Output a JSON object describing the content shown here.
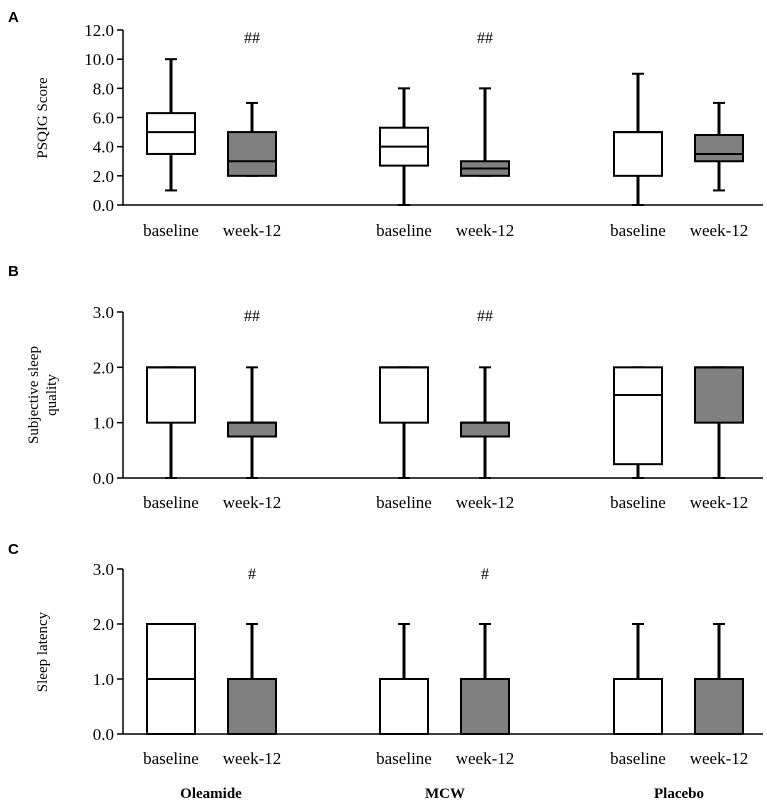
{
  "chart_data": [
    {
      "panel": "A",
      "type": "box",
      "ylabel": "PSQIG Score",
      "ylim": [
        0,
        12
      ],
      "yticks": [
        "0.0",
        "2.0",
        "4.0",
        "6.0",
        "8.0",
        "10.0",
        "12.0"
      ],
      "groups": [
        {
          "sig": "##",
          "boxes": [
            {
              "label": "baseline",
              "fill": "#ffffff",
              "min": 1,
              "q1": 3.5,
              "median": 5,
              "q3": 6.3,
              "max": 10
            },
            {
              "label": "week-12",
              "fill": "#808080",
              "min": 2,
              "q1": 2,
              "median": 3,
              "q3": 5,
              "max": 7
            }
          ]
        },
        {
          "sig": "##",
          "boxes": [
            {
              "label": "baseline",
              "fill": "#ffffff",
              "min": 0,
              "q1": 2.7,
              "median": 4,
              "q3": 5.3,
              "max": 8
            },
            {
              "label": "week-12",
              "fill": "#808080",
              "min": 2,
              "q1": 2,
              "median": 2.5,
              "q3": 3,
              "max": 8
            }
          ]
        },
        {
          "sig": "",
          "boxes": [
            {
              "label": "baseline",
              "fill": "#ffffff",
              "min": 0,
              "q1": 2,
              "median": 5,
              "q3": 5,
              "max": 9
            },
            {
              "label": "week-12",
              "fill": "#808080",
              "min": 1,
              "q1": 3,
              "median": 3.5,
              "q3": 4.8,
              "max": 7
            }
          ]
        }
      ]
    },
    {
      "panel": "B",
      "type": "box",
      "ylabel": [
        "Subjective sleep",
        "quality"
      ],
      "ylim": [
        0,
        3
      ],
      "yticks": [
        "0.0",
        "1.0",
        "2.0",
        "3.0"
      ],
      "groups": [
        {
          "sig": "##",
          "boxes": [
            {
              "label": "baseline",
              "fill": "#ffffff",
              "min": 0,
              "q1": 1,
              "median": 2,
              "q3": 2,
              "max": 2
            },
            {
              "label": "week-12",
              "fill": "#808080",
              "min": 0,
              "q1": 0.75,
              "median": 1,
              "q3": 1,
              "max": 2
            }
          ]
        },
        {
          "sig": "##",
          "boxes": [
            {
              "label": "baseline",
              "fill": "#ffffff",
              "min": 0,
              "q1": 1,
              "median": 2,
              "q3": 2,
              "max": 2
            },
            {
              "label": "week-12",
              "fill": "#808080",
              "min": 0,
              "q1": 0.75,
              "median": 1,
              "q3": 1,
              "max": 2
            }
          ]
        },
        {
          "sig": "",
          "boxes": [
            {
              "label": "baseline",
              "fill": "#ffffff",
              "min": 0,
              "q1": 0.25,
              "median": 1.5,
              "q3": 2,
              "max": 2
            },
            {
              "label": "week-12",
              "fill": "#808080",
              "min": 0,
              "q1": 1,
              "median": 2,
              "q3": 2,
              "max": 2
            }
          ]
        }
      ]
    },
    {
      "panel": "C",
      "type": "box",
      "ylabel": "Sleep latency",
      "ylim": [
        0,
        3
      ],
      "yticks": [
        "0.0",
        "1.0",
        "2.0",
        "3.0"
      ],
      "groups": [
        {
          "sig": "#",
          "boxes": [
            {
              "label": "baseline",
              "fill": "#ffffff",
              "min": 0,
              "q1": 0,
              "median": 1,
              "q3": 2,
              "max": 2
            },
            {
              "label": "week-12",
              "fill": "#808080",
              "min": 0,
              "q1": 0,
              "median": 1,
              "q3": 1,
              "max": 2
            }
          ]
        },
        {
          "sig": "#",
          "boxes": [
            {
              "label": "baseline",
              "fill": "#ffffff",
              "min": 0,
              "q1": 0,
              "median": 1,
              "q3": 1,
              "max": 2
            },
            {
              "label": "week-12",
              "fill": "#808080",
              "min": 0,
              "q1": 0,
              "median": 1,
              "q3": 1,
              "max": 2
            }
          ]
        },
        {
          "sig": "",
          "boxes": [
            {
              "label": "baseline",
              "fill": "#ffffff",
              "min": 0,
              "q1": 0,
              "median": 1,
              "q3": 1,
              "max": 2
            },
            {
              "label": "week-12",
              "fill": "#808080",
              "min": 0,
              "q1": 0,
              "median": 1,
              "q3": 1,
              "max": 2
            }
          ]
        }
      ]
    }
  ],
  "group_names": [
    "Oleamide",
    "MCW",
    "Placebo"
  ]
}
